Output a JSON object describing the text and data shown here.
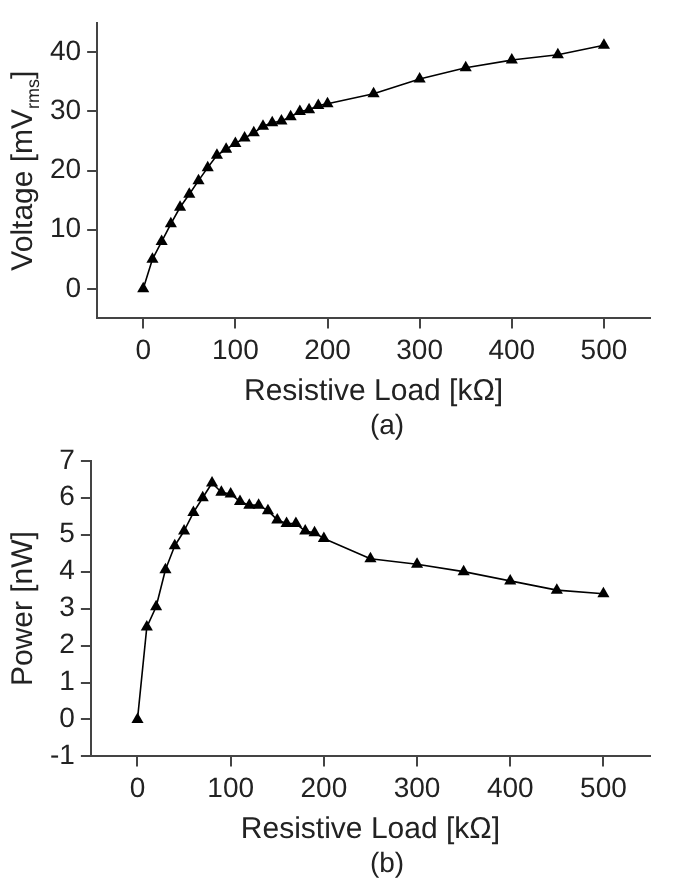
{
  "chart_data": [
    {
      "type": "line",
      "xlabel": "Resistive Load [kΩ]",
      "ylabel": "Voltage [mV$_{rms}$]",
      "annotations": [
        "(a)"
      ],
      "marker": "triangle",
      "grid": false,
      "legend": false,
      "xlim": [
        -50,
        550
      ],
      "xticks": [
        0,
        100,
        200,
        300,
        400,
        500
      ],
      "ylim": [
        -5,
        45
      ],
      "yticks": [
        0,
        10,
        20,
        30,
        40
      ],
      "series": [
        {
          "color": "#000000",
          "x": [
            0,
            10,
            20,
            30,
            40,
            50,
            60,
            70,
            80,
            90,
            100,
            110,
            120,
            130,
            140,
            150,
            160,
            170,
            180,
            190,
            200,
            250,
            300,
            350,
            400,
            450,
            500
          ],
          "values": [
            0,
            5,
            8,
            11,
            13.8,
            16,
            18.3,
            20.5,
            22.6,
            23.6,
            24.6,
            25.5,
            26.4,
            27.5,
            28.1,
            28.4,
            29.1,
            30,
            30.3,
            31,
            31.3,
            33,
            35.5,
            37.4,
            38.7,
            39.6,
            41.2
          ]
        }
      ]
    },
    {
      "type": "line",
      "xlabel": "Resistive Load [kΩ]",
      "ylabel": "Power [nW]",
      "annotations": [
        "(b)"
      ],
      "marker": "triangle",
      "grid": false,
      "legend": false,
      "xlim": [
        -50,
        550
      ],
      "xticks": [
        0,
        100,
        200,
        300,
        400,
        500
      ],
      "ylim": [
        -1,
        7
      ],
      "yticks": [
        -1,
        0,
        1,
        2,
        3,
        4,
        5,
        6,
        7
      ],
      "series": [
        {
          "color": "#000000",
          "x": [
            0,
            10,
            20,
            30,
            40,
            50,
            60,
            70,
            80,
            90,
            100,
            110,
            120,
            130,
            140,
            150,
            160,
            170,
            180,
            190,
            200,
            250,
            300,
            350,
            400,
            450,
            500
          ],
          "values": [
            0,
            2.5,
            3.05,
            4.05,
            4.7,
            5.1,
            5.6,
            6.0,
            6.4,
            6.15,
            6.1,
            5.9,
            5.8,
            5.8,
            5.65,
            5.4,
            5.3,
            5.3,
            5.1,
            5.05,
            4.9,
            4.35,
            4.2,
            4.0,
            3.75,
            3.5,
            3.4
          ]
        }
      ]
    }
  ]
}
